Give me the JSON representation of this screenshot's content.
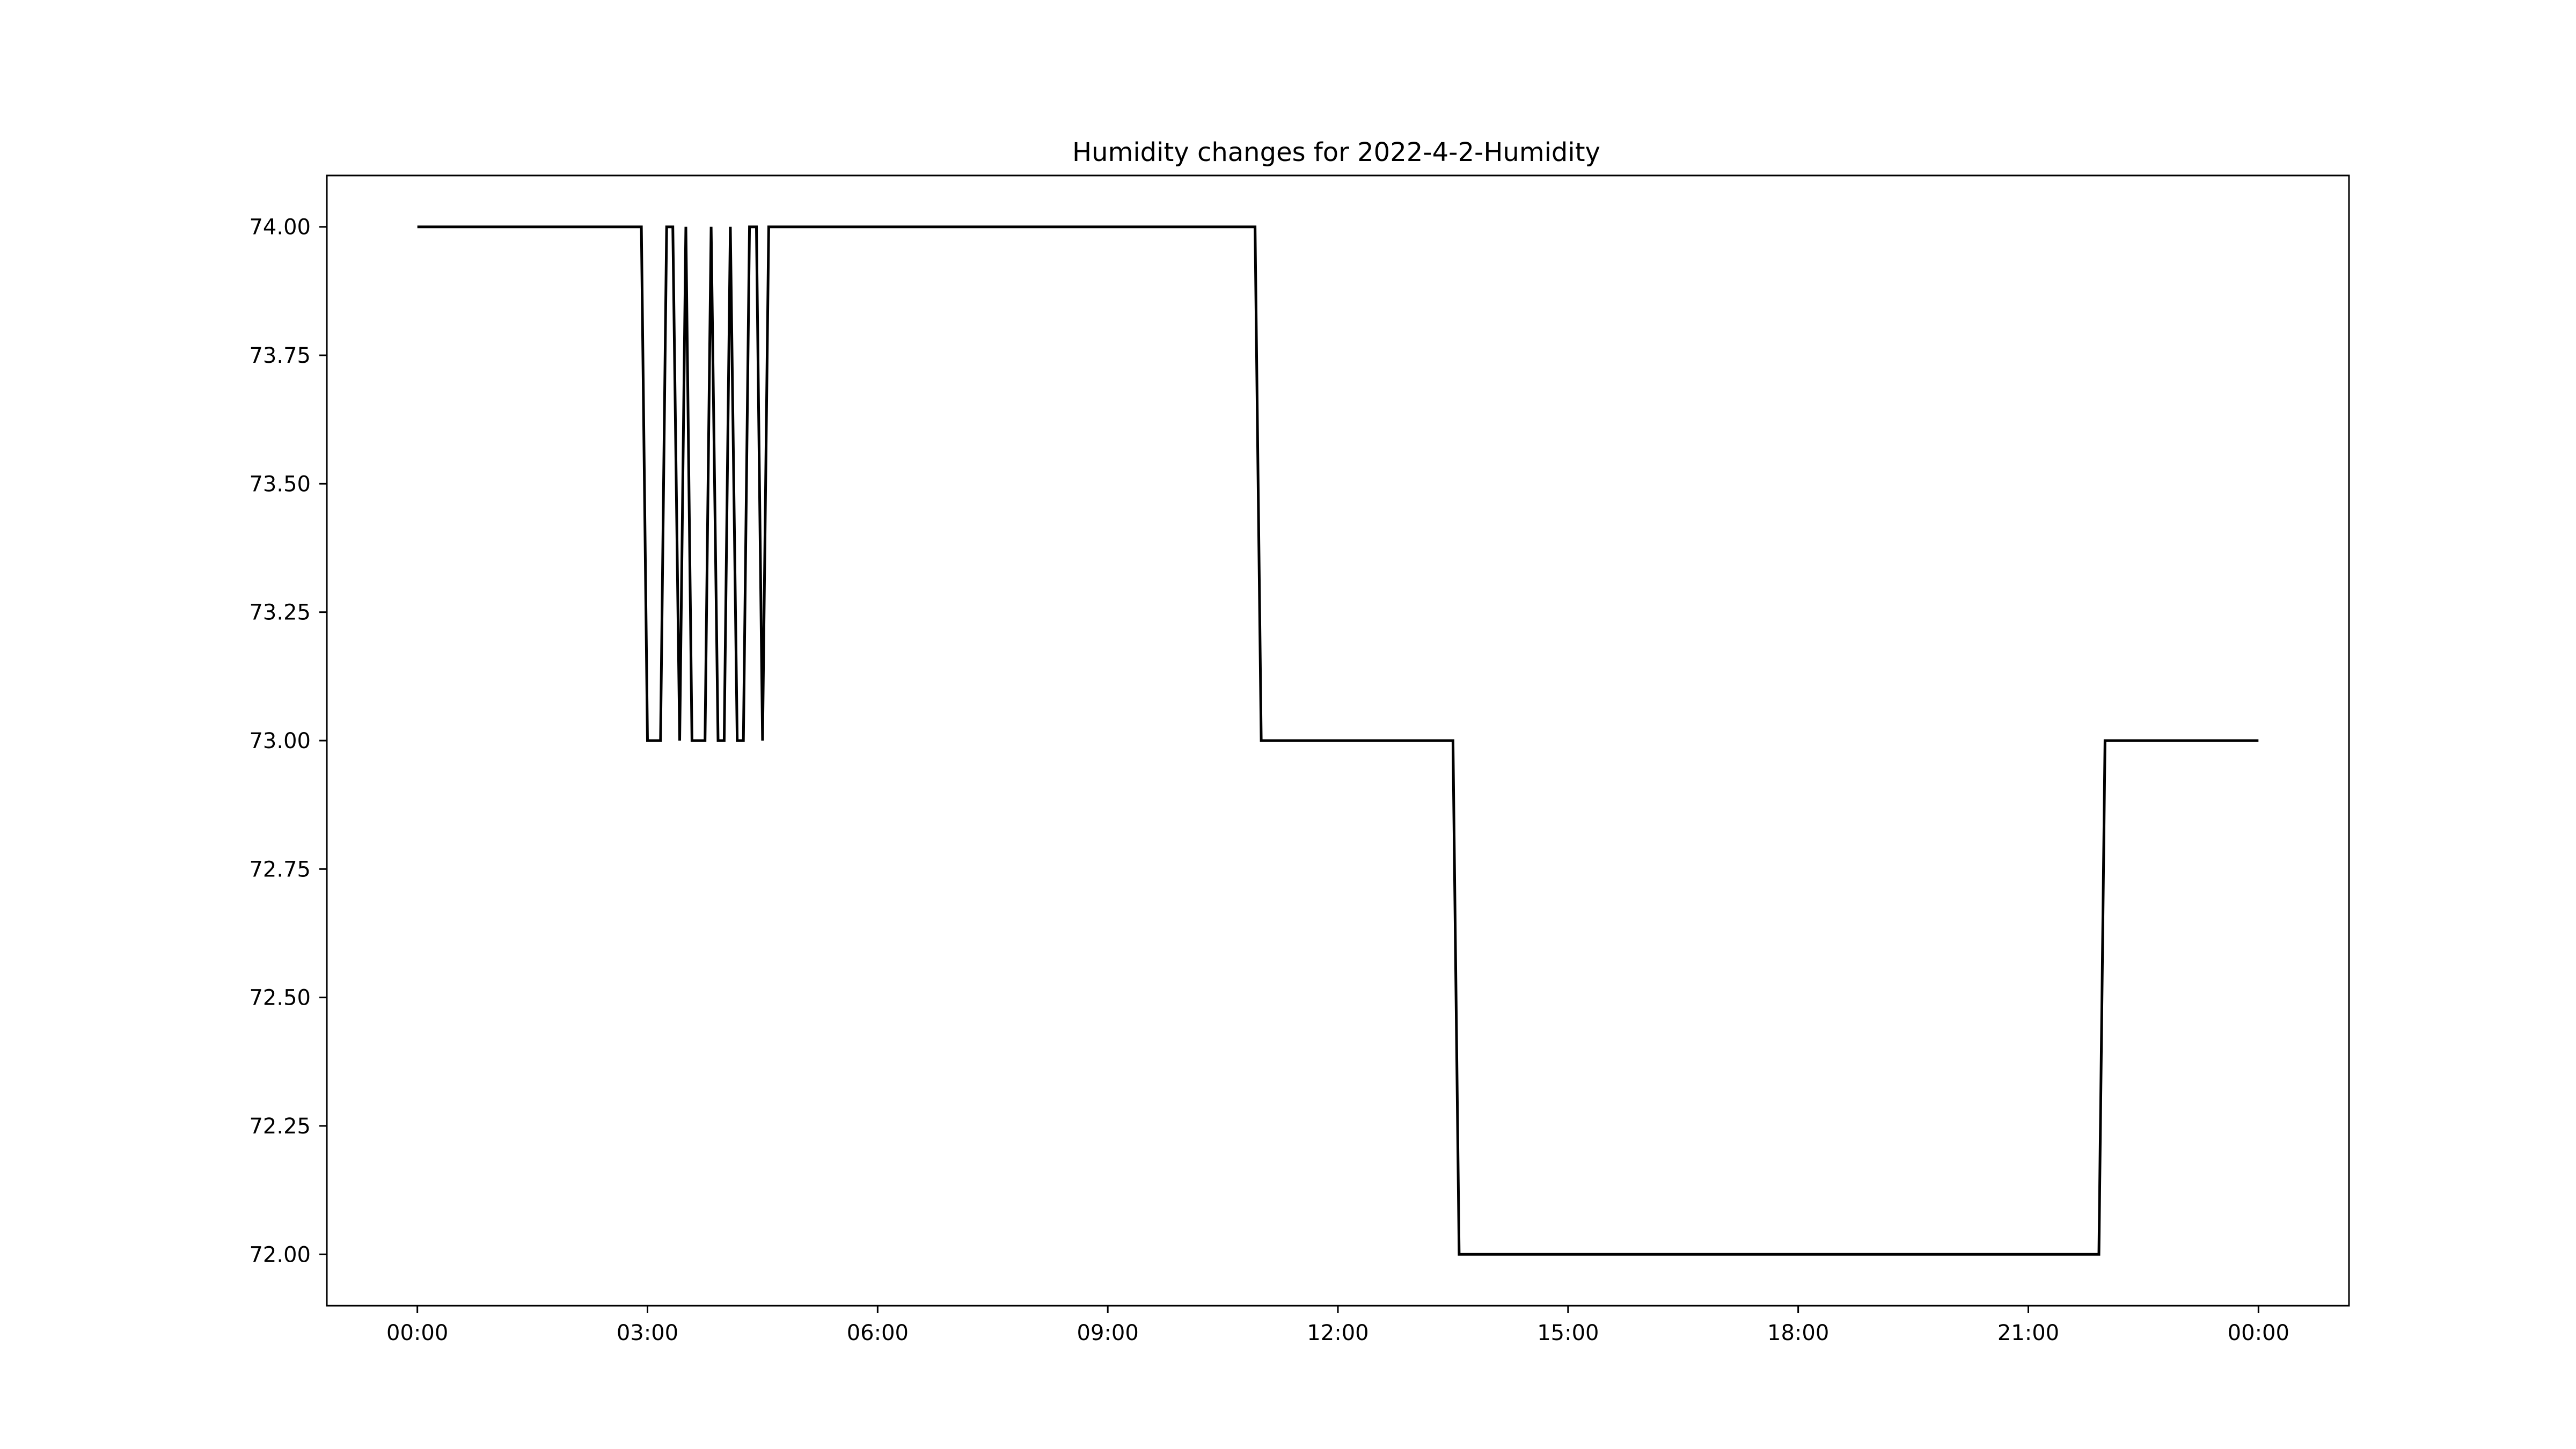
{
  "chart_data": {
    "type": "line",
    "title": "Humidity changes for 2022-4-2-Humidity",
    "xlabel": "",
    "ylabel": "",
    "x_tick_labels": [
      "00:00",
      "03:00",
      "06:00",
      "09:00",
      "12:00",
      "15:00",
      "18:00",
      "21:00",
      "00:00"
    ],
    "x_tick_hours": [
      0,
      3,
      6,
      9,
      12,
      15,
      18,
      21,
      24
    ],
    "y_tick_labels": [
      "72.00",
      "72.25",
      "72.50",
      "72.75",
      "73.00",
      "73.25",
      "73.50",
      "73.75",
      "74.00"
    ],
    "y_tick_values": [
      72.0,
      72.25,
      72.5,
      72.75,
      73.0,
      73.25,
      73.5,
      73.75,
      74.0
    ],
    "xlim_hours": [
      -1.18,
      25.18
    ],
    "ylim": [
      71.9,
      74.1
    ],
    "grid": false,
    "line_color": "#000000",
    "series": [
      {
        "x_hours": [
          0.0,
          2.92,
          3.0,
          3.17,
          3.25,
          3.33,
          3.42,
          3.5,
          3.58,
          3.75,
          3.83,
          3.92,
          4.0,
          4.08,
          4.17,
          4.25,
          4.33,
          4.42,
          4.5,
          4.58,
          10.92,
          11.0,
          13.5,
          13.58,
          21.92,
          22.0,
          24.0
        ],
        "y": [
          74.0,
          74.0,
          73.0,
          73.0,
          74.0,
          74.0,
          73.0,
          74.0,
          73.0,
          73.0,
          74.0,
          73.0,
          73.0,
          74.0,
          73.0,
          73.0,
          74.0,
          74.0,
          73.0,
          74.0,
          74.0,
          73.0,
          73.0,
          72.0,
          72.0,
          73.0,
          73.0
        ]
      }
    ]
  }
}
